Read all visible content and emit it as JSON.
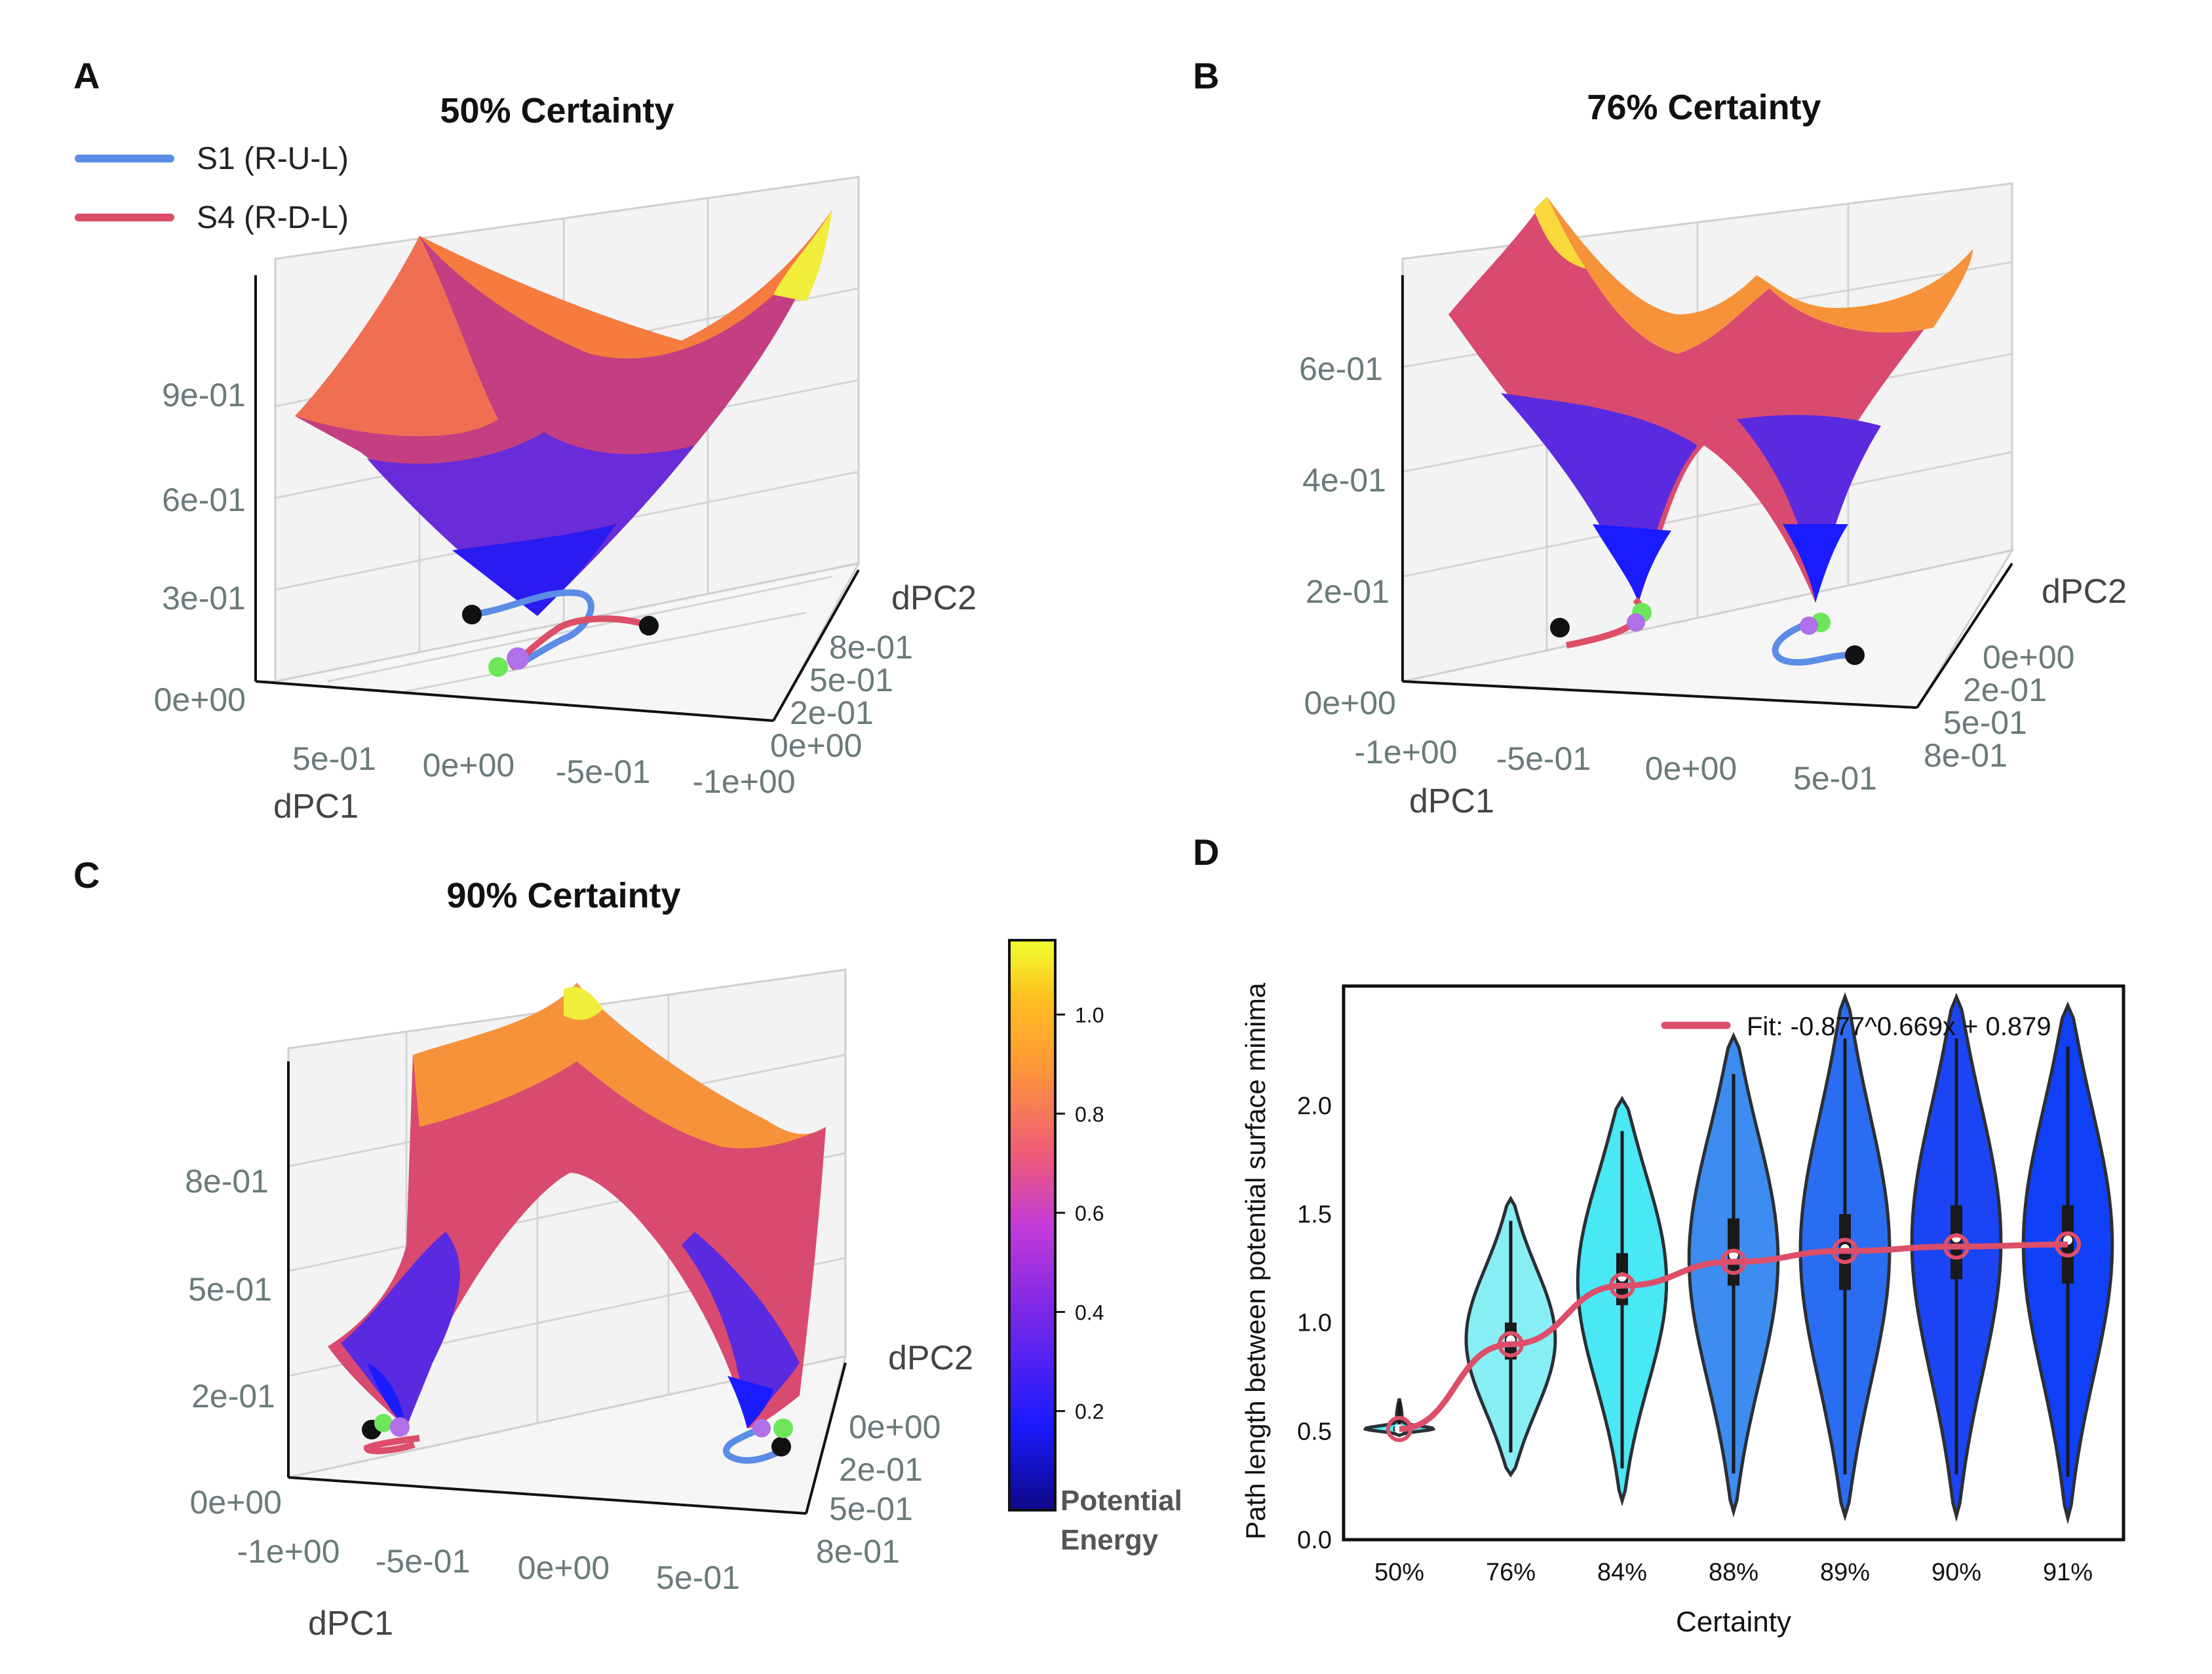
{
  "figure": {
    "panels": [
      {
        "letter": "A",
        "title": "50% Certainty"
      },
      {
        "letter": "B",
        "title": "76% Certainty"
      },
      {
        "letter": "C",
        "title": "90% Certainty"
      },
      {
        "letter": "D",
        "title": ""
      }
    ],
    "legend": [
      {
        "label": "S1 (R-U-L)",
        "color": "#5b8ce6"
      },
      {
        "label": "S4 (R-D-L)",
        "color": "#dd4e68"
      }
    ],
    "colorbar": {
      "ticks": [
        "0.2",
        "0.4",
        "0.6",
        "0.8",
        "1.0"
      ],
      "tick_values": [
        0.2,
        0.4,
        0.6,
        0.8,
        1.0
      ],
      "range": [
        0.0,
        1.15
      ],
      "label_line1": "Potential",
      "label_line2": "Energy"
    }
  },
  "chart_data": [
    {
      "type": "surface3d",
      "panel": "A",
      "title": "50% Certainty",
      "xlabel": "dPC1",
      "ylabel": "dPC2",
      "x_ticks": [
        "5e-01",
        "0e+00",
        "-5e-01",
        "-1e+00"
      ],
      "y_ticks": [
        "8e-01",
        "5e-01",
        "2e-01",
        "0e+00"
      ],
      "z_ticks": [
        "0e+00",
        "3e-01",
        "6e-01",
        "9e-01"
      ],
      "zlim": [
        0,
        1.15
      ],
      "minima": 1
    },
    {
      "type": "surface3d",
      "panel": "B",
      "title": "76% Certainty",
      "xlabel": "dPC1",
      "ylabel": "dPC2",
      "x_ticks": [
        "-1e+00",
        "-5e-01",
        "0e+00",
        "5e-01"
      ],
      "y_ticks": [
        "0e+00",
        "2e-01",
        "5e-01",
        "8e-01"
      ],
      "z_ticks": [
        "0e+00",
        "2e-01",
        "4e-01",
        "6e-01"
      ],
      "zlim": [
        0,
        0.75
      ],
      "minima": 2
    },
    {
      "type": "surface3d",
      "panel": "C",
      "title": "90% Certainty",
      "xlabel": "dPC1",
      "ylabel": "dPC2",
      "x_ticks": [
        "-1e+00",
        "-5e-01",
        "0e+00",
        "5e-01"
      ],
      "y_ticks": [
        "0e+00",
        "2e-01",
        "5e-01",
        "8e-01"
      ],
      "z_ticks": [
        "0e+00",
        "2e-01",
        "5e-01",
        "8e-01"
      ],
      "zlim": [
        0,
        1.15
      ],
      "minima": 2
    },
    {
      "type": "violin",
      "panel": "D",
      "xlabel": "Certainty",
      "ylabel": "Path length between potential surface minima",
      "ylim": [
        0,
        2.55
      ],
      "y_ticks": [
        "0.0",
        "0.5",
        "1.0",
        "1.5",
        "2.0"
      ],
      "y_tick_values": [
        0,
        0.5,
        1.0,
        1.5,
        2.0
      ],
      "categories": [
        "50%",
        "76%",
        "84%",
        "88%",
        "89%",
        "90%",
        "91%"
      ],
      "medians": [
        0.51,
        0.92,
        1.21,
        1.31,
        1.34,
        1.39,
        1.38
      ],
      "mins": [
        0.48,
        0.3,
        0.18,
        0.13,
        0.11,
        0.11,
        0.1
      ],
      "maxs": [
        0.65,
        1.57,
        2.03,
        2.32,
        2.5,
        2.5,
        2.46
      ],
      "q1": [
        0.5,
        0.83,
        1.08,
        1.17,
        1.15,
        1.2,
        1.18
      ],
      "q3": [
        0.52,
        1.0,
        1.32,
        1.48,
        1.5,
        1.54,
        1.54
      ],
      "fill_colors": [
        "#4fe6f2",
        "#88eef5",
        "#4ae8f5",
        "#3d8cf0",
        "#2b6df2",
        "#1b44f5",
        "#1040f8"
      ],
      "fit_legend": "Fit: -0.877^0.669x + 0.879",
      "fit_color": "#dd4e68",
      "fit_points": [
        0.51,
        0.9,
        1.17,
        1.28,
        1.33,
        1.35,
        1.36
      ]
    }
  ]
}
